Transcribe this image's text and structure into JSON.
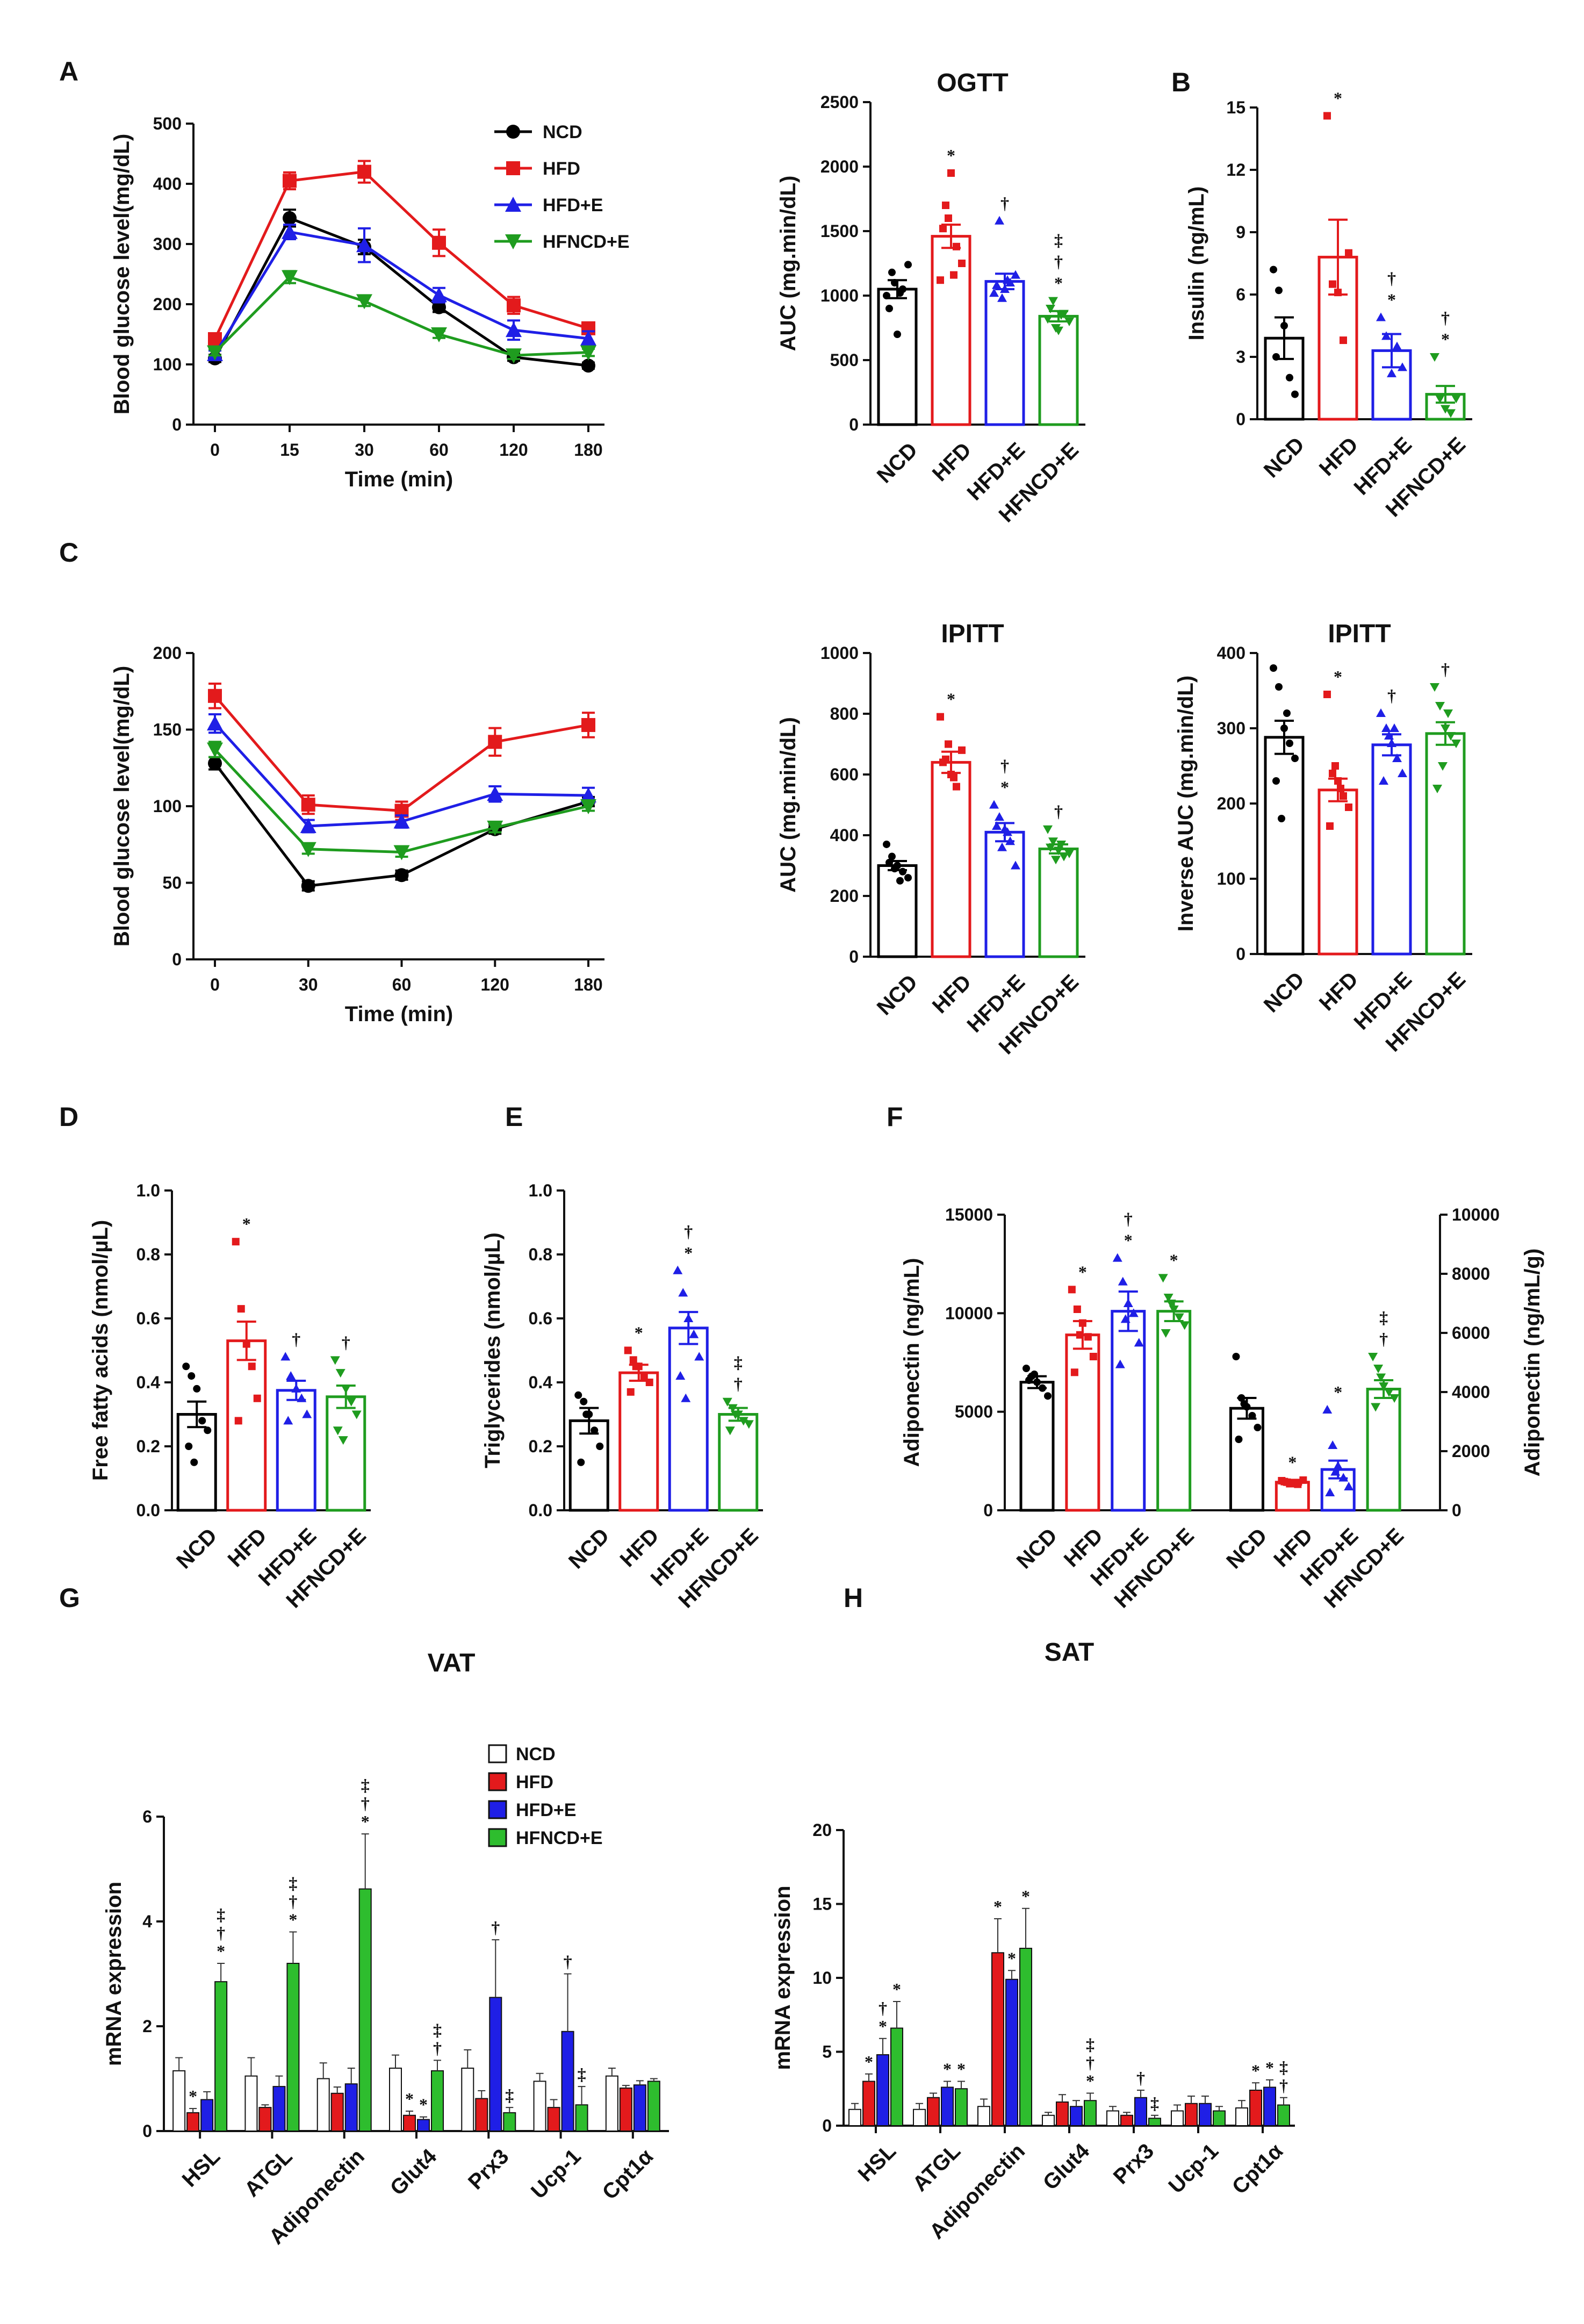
{
  "figure": {
    "groups": [
      "NCD",
      "HFD",
      "HFD+E",
      "HFNCD+E"
    ],
    "colors": {
      "NCD": "#000000",
      "HFD": "#e31a1c",
      "HFD+E": "#1f1fe6",
      "HFNCD+E": "#1f9c1f"
    },
    "bar_colors": {
      "NCD": "#ffffff",
      "HFD": "#e31a1c",
      "HFD+E": "#1f1fe6",
      "HFNCD+E": "#2ebd2e"
    }
  },
  "chart_data": [
    {
      "id": "A1",
      "letter": "A",
      "type": "line",
      "title": "",
      "xlabel": "Time (min)",
      "ylabel": "Blood glucose level(mg/dL)",
      "x": [
        "0",
        "15",
        "30",
        "60",
        "120",
        "180"
      ],
      "ylim": [
        0,
        500
      ],
      "yticks": [
        0,
        100,
        200,
        300,
        400,
        500
      ],
      "legend": [
        "NCD",
        "HFD",
        "HFD+E",
        "HFNCD+E"
      ],
      "series": [
        {
          "name": "NCD",
          "values": [
            110,
            343,
            295,
            195,
            112,
            98
          ],
          "err": [
            6,
            14,
            12,
            8,
            6,
            5
          ]
        },
        {
          "name": "HFD",
          "values": [
            142,
            405,
            420,
            302,
            198,
            160
          ],
          "err": [
            6,
            14,
            18,
            22,
            14,
            8
          ]
        },
        {
          "name": "HFD+E",
          "values": [
            117,
            320,
            298,
            215,
            157,
            143
          ],
          "err": [
            6,
            12,
            28,
            12,
            16,
            12
          ]
        },
        {
          "name": "HFNCD+E",
          "values": [
            120,
            245,
            205,
            150,
            115,
            120
          ],
          "err": [
            5,
            10,
            8,
            6,
            6,
            6
          ]
        }
      ]
    },
    {
      "id": "A2",
      "letter": "",
      "type": "bar",
      "title": "OGTT",
      "ylabel": "AUC (mg.min/dL)",
      "ylim": [
        0,
        2500
      ],
      "yticks": [
        0,
        500,
        1000,
        1500,
        2000,
        2500
      ],
      "categories": [
        "NCD",
        "HFD",
        "HFD+E",
        "HFNCD+E"
      ],
      "values": [
        1050,
        1460,
        1110,
        840
      ],
      "err": [
        70,
        90,
        60,
        40
      ],
      "points": [
        [
          1000,
          1180,
          700,
          1050,
          1240,
          900,
          1100,
          1020
        ],
        [
          1120,
          1700,
          1950,
          1380,
          1250,
          1520,
          1600,
          1160
        ],
        [
          1020,
          1580,
          1050,
          1100,
          1160,
          1080,
          980,
          1120
        ],
        [
          820,
          960,
          730,
          860,
          800,
          900,
          750,
          850
        ]
      ],
      "marks": [
        [],
        [
          "*"
        ],
        [
          "†"
        ],
        [
          "*",
          "†",
          "‡"
        ]
      ]
    },
    {
      "id": "B",
      "letter": "B",
      "type": "bar",
      "title": "",
      "ylabel": "Insulin (ng/mL)",
      "ylim": [
        0,
        15
      ],
      "yticks": [
        0,
        3,
        6,
        9,
        12,
        15
      ],
      "categories": [
        "NCD",
        "HFD",
        "HFD+E",
        "HFNCD+E"
      ],
      "values": [
        3.9,
        7.8,
        3.3,
        1.2
      ],
      "err": [
        1.0,
        1.8,
        0.8,
        0.4
      ],
      "points": [
        [
          7.2,
          6.2,
          4.5,
          2.0,
          1.2,
          3.0
        ],
        [
          14.6,
          6.5,
          6.1,
          3.8,
          8.0
        ],
        [
          4.9,
          4.0,
          2.2,
          3.5,
          2.5
        ],
        [
          3.0,
          1.0,
          0.5,
          0.3,
          1.0
        ]
      ],
      "marks": [
        [],
        [
          "*"
        ],
        [
          "*",
          "†"
        ],
        [
          "*",
          "†"
        ]
      ]
    },
    {
      "id": "C1",
      "letter": "C",
      "type": "line",
      "title": "",
      "xlabel": "Time (min)",
      "ylabel": "Blood glucose level(mg/dL)",
      "x": [
        "0",
        "30",
        "60",
        "120",
        "180"
      ],
      "ylim": [
        0,
        200
      ],
      "yticks": [
        0,
        50,
        100,
        150,
        200
      ],
      "legend": [],
      "series": [
        {
          "name": "NCD",
          "values": [
            128,
            48,
            55,
            85,
            103
          ],
          "err": [
            4,
            3,
            3,
            3,
            3
          ]
        },
        {
          "name": "HFD",
          "values": [
            172,
            101,
            97,
            142,
            153
          ],
          "err": [
            8,
            6,
            6,
            9,
            8
          ]
        },
        {
          "name": "HFD+E",
          "values": [
            154,
            87,
            90,
            108,
            107
          ],
          "err": [
            6,
            4,
            4,
            5,
            5
          ]
        },
        {
          "name": "HFNCD+E",
          "values": [
            137,
            72,
            70,
            86,
            100
          ],
          "err": [
            5,
            3,
            3,
            3,
            3
          ]
        }
      ]
    },
    {
      "id": "C2",
      "letter": "",
      "type": "bar",
      "title": "IPITT",
      "ylabel": "AUC (mg.min/dL)",
      "ylim": [
        0,
        1000
      ],
      "yticks": [
        0,
        200,
        400,
        600,
        800,
        1000
      ],
      "categories": [
        "NCD",
        "HFD",
        "HFD+E",
        "HFNCD+E"
      ],
      "values": [
        300,
        640,
        410,
        355
      ],
      "err": [
        15,
        35,
        30,
        15
      ],
      "points": [
        [
          370,
          330,
          300,
          280,
          260,
          310,
          290,
          250
        ],
        [
          790,
          650,
          600,
          560,
          680,
          640,
          700,
          590
        ],
        [
          500,
          460,
          420,
          380,
          300,
          430,
          360,
          410
        ],
        [
          420,
          380,
          350,
          330,
          340,
          360,
          320,
          370
        ]
      ],
      "marks": [
        [],
        [
          "*"
        ],
        [
          "*",
          "†"
        ],
        [
          "†"
        ]
      ]
    },
    {
      "id": "C3",
      "letter": "",
      "type": "bar",
      "title": "IPITT",
      "ylabel": "Inverse AUC (mg.min/dL)",
      "ylim": [
        0,
        400
      ],
      "yticks": [
        0,
        100,
        200,
        300,
        400
      ],
      "categories": [
        "NCD",
        "HFD",
        "HFD+E",
        "HFNCD+E"
      ],
      "values": [
        288,
        218,
        278,
        293
      ],
      "err": [
        22,
        15,
        14,
        15
      ],
      "points": [
        [
          380,
          355,
          300,
          280,
          260,
          230,
          180,
          320
        ],
        [
          345,
          240,
          230,
          210,
          195,
          170,
          250,
          220
        ],
        [
          320,
          300,
          280,
          260,
          240,
          230,
          290,
          300
        ],
        [
          355,
          330,
          300,
          290,
          280,
          220,
          250,
          320
        ]
      ],
      "marks": [
        [],
        [
          "*"
        ],
        [
          "†"
        ],
        [
          "†"
        ]
      ]
    },
    {
      "id": "D",
      "letter": "D",
      "type": "bar",
      "title": "",
      "ylabel": "Free fatty acids (nmol/µL)",
      "ylim": [
        0,
        1.0
      ],
      "yticks": [
        "0.0",
        "0.2",
        "0.4",
        "0.6",
        "0.8",
        "1.0"
      ],
      "categories": [
        "NCD",
        "HFD",
        "HFD+E",
        "HFNCD+E"
      ],
      "values": [
        0.3,
        0.53,
        0.375,
        0.355
      ],
      "err": [
        0.04,
        0.06,
        0.03,
        0.035
      ],
      "points": [
        [
          0.45,
          0.42,
          0.38,
          0.28,
          0.25,
          0.2,
          0.15
        ],
        [
          0.84,
          0.63,
          0.52,
          0.45,
          0.35,
          0.28
        ],
        [
          0.48,
          0.42,
          0.38,
          0.35,
          0.3,
          0.28
        ],
        [
          0.47,
          0.43,
          0.38,
          0.34,
          0.3,
          0.25,
          0.22
        ]
      ],
      "marks": [
        [],
        [
          "*"
        ],
        [
          "†"
        ],
        [
          "†"
        ]
      ]
    },
    {
      "id": "E",
      "letter": "E",
      "type": "bar",
      "title": "",
      "ylabel": "Triglycerides (nmol/µL)",
      "ylim": [
        0,
        1.0
      ],
      "yticks": [
        "0.0",
        "0.2",
        "0.4",
        "0.6",
        "0.8",
        "1.0"
      ],
      "categories": [
        "NCD",
        "HFD",
        "HFD+E",
        "HFNCD+E"
      ],
      "values": [
        0.28,
        0.43,
        0.57,
        0.3
      ],
      "err": [
        0.04,
        0.025,
        0.05,
        0.02
      ],
      "points": [
        [
          0.36,
          0.34,
          0.3,
          0.25,
          0.2,
          0.15,
          0.3
        ],
        [
          0.5,
          0.47,
          0.45,
          0.42,
          0.4,
          0.37,
          0.45
        ],
        [
          0.75,
          0.68,
          0.6,
          0.55,
          0.48,
          0.42,
          0.35
        ],
        [
          0.34,
          0.32,
          0.3,
          0.28,
          0.27,
          0.25,
          0.3
        ]
      ],
      "marks": [
        [],
        [
          "*"
        ],
        [
          "*",
          "†"
        ],
        [
          "†",
          "‡"
        ]
      ]
    },
    {
      "id": "F",
      "letter": "F",
      "type": "bar",
      "title": "",
      "ylabel": "Adiponectin (ng/mL)",
      "ylabel_right": "Adiponectin (ng/mL/g)",
      "ylim": [
        0,
        15000
      ],
      "yticks": [
        0,
        5000,
        10000,
        15000
      ],
      "ylim_right": [
        0,
        10000
      ],
      "yticks_right": [
        0,
        2000,
        4000,
        6000,
        8000,
        10000
      ],
      "categories": [
        "NCD",
        "HFD",
        "HFD+E",
        "HFNCD+E",
        "NCD",
        "HFD",
        "HFD+E",
        "HFNCD+E"
      ],
      "values": [
        6500,
        8900,
        10100,
        10100,
        3450,
        950,
        1380,
        4100
      ],
      "err": [
        300,
        700,
        1000,
        500,
        350,
        80,
        300,
        300
      ],
      "axis": [
        "left",
        "left",
        "left",
        "left",
        "right",
        "right",
        "right",
        "right"
      ],
      "points": [
        [
          7200,
          6800,
          6500,
          6200,
          5800,
          6600,
          6900
        ],
        [
          11200,
          10200,
          9500,
          8800,
          7800,
          7000,
          8900
        ],
        [
          12800,
          11600,
          10500,
          10000,
          8500,
          7400,
          9700
        ],
        [
          11800,
          10800,
          10200,
          9800,
          9400,
          9000,
          10500
        ],
        [
          5200,
          3800,
          3500,
          3200,
          2800,
          2400,
          3600
        ],
        [
          1000,
          950,
          900,
          880,
          1020,
          970,
          900
        ],
        [
          3400,
          2200,
          1500,
          1100,
          800,
          600,
          1300
        ],
        [
          5200,
          4800,
          4200,
          4000,
          3800,
          3500,
          4500
        ]
      ],
      "marks": [
        [],
        [
          "*"
        ],
        [
          "*",
          "†"
        ],
        [
          "*"
        ],
        [],
        [
          "*"
        ],
        [
          "*"
        ],
        [
          "†",
          "‡"
        ]
      ]
    },
    {
      "id": "G",
      "letter": "G",
      "type": "bar",
      "title": "VAT",
      "ylabel": "mRNA expression",
      "ylim": [
        0,
        6
      ],
      "yticks": [
        0,
        2,
        4,
        6
      ],
      "categories": [
        "HSL",
        "ATGL",
        "Adiponectin",
        "Glut4",
        "Prx3",
        "Ucp-1",
        "Cpt1α"
      ],
      "legend": [
        "NCD",
        "HFD",
        "HFD+E",
        "HFNCD+E"
      ],
      "series": [
        {
          "name": "NCD",
          "values": [
            1.15,
            1.05,
            1.0,
            1.2,
            1.2,
            0.95,
            1.05
          ],
          "err": [
            0.25,
            0.35,
            0.3,
            0.25,
            0.35,
            0.15,
            0.15
          ]
        },
        {
          "name": "HFD",
          "values": [
            0.35,
            0.45,
            0.72,
            0.3,
            0.62,
            0.45,
            0.82
          ],
          "err": [
            0.08,
            0.05,
            0.12,
            0.08,
            0.15,
            0.15,
            0.05
          ]
        },
        {
          "name": "HFD+E",
          "values": [
            0.6,
            0.85,
            0.9,
            0.22,
            2.55,
            1.9,
            0.88
          ],
          "err": [
            0.15,
            0.2,
            0.3,
            0.05,
            1.1,
            1.1,
            0.08
          ]
        },
        {
          "name": "HFNCD+E",
          "values": [
            2.85,
            3.2,
            4.62,
            1.15,
            0.35,
            0.5,
            0.95
          ],
          "err": [
            0.35,
            0.6,
            1.05,
            0.2,
            0.1,
            0.35,
            0.05
          ]
        }
      ],
      "marks": [
        [
          [],
          [
            "*"
          ],
          [],
          [
            "*",
            "†",
            "‡"
          ]
        ],
        [
          [],
          [],
          [],
          [
            "*",
            "†",
            "‡"
          ]
        ],
        [
          [],
          [],
          [],
          [
            "*",
            "†",
            "‡"
          ]
        ],
        [
          [],
          [
            "*"
          ],
          [
            "*"
          ],
          [
            "†",
            "‡"
          ]
        ],
        [
          [],
          [],
          [
            "†"
          ],
          [
            "‡"
          ]
        ],
        [
          [],
          [],
          [
            "†"
          ],
          [
            "‡"
          ]
        ],
        [
          [],
          [],
          [],
          []
        ]
      ]
    },
    {
      "id": "H",
      "letter": "H",
      "type": "bar",
      "title": "SAT",
      "ylabel": "mRNA expression",
      "ylim": [
        0,
        20
      ],
      "yticks": [
        0,
        5,
        10,
        15,
        20
      ],
      "categories": [
        "HSL",
        "ATGL",
        "Adiponectin",
        "Glut4",
        "Prx3",
        "Ucp-1",
        "Cpt1α"
      ],
      "series": [
        {
          "name": "NCD",
          "values": [
            1.1,
            1.1,
            1.3,
            0.7,
            1.0,
            1.0,
            1.2
          ],
          "err": [
            0.4,
            0.4,
            0.5,
            0.2,
            0.3,
            0.4,
            0.5
          ]
        },
        {
          "name": "HFD",
          "values": [
            3.0,
            1.9,
            11.7,
            1.6,
            0.7,
            1.5,
            2.4
          ],
          "err": [
            0.5,
            0.3,
            2.3,
            0.5,
            0.2,
            0.5,
            0.5
          ]
        },
        {
          "name": "HFD+E",
          "values": [
            4.8,
            2.6,
            9.9,
            1.3,
            1.9,
            1.5,
            2.6
          ],
          "err": [
            1.1,
            0.4,
            0.6,
            0.4,
            0.5,
            0.5,
            0.5
          ]
        },
        {
          "name": "HFNCD+E",
          "values": [
            6.6,
            2.5,
            12.0,
            1.7,
            0.5,
            1.0,
            1.4
          ],
          "err": [
            1.8,
            0.5,
            2.7,
            0.5,
            0.2,
            0.3,
            0.5
          ]
        }
      ],
      "marks": [
        [
          [],
          [
            "*"
          ],
          [
            "*",
            "†"
          ],
          [
            "*"
          ]
        ],
        [
          [],
          [],
          [
            "*"
          ],
          [
            "*"
          ]
        ],
        [
          [],
          [
            "*"
          ],
          [
            "*"
          ],
          [
            "*"
          ]
        ],
        [
          [],
          [],
          [],
          [
            "*",
            "†",
            "‡"
          ]
        ],
        [
          [],
          [],
          [
            "†"
          ],
          [
            "‡"
          ]
        ],
        [
          [],
          [],
          [],
          []
        ],
        [
          [],
          [
            "*"
          ],
          [
            "*"
          ],
          [
            "†",
            "‡"
          ]
        ]
      ]
    }
  ]
}
